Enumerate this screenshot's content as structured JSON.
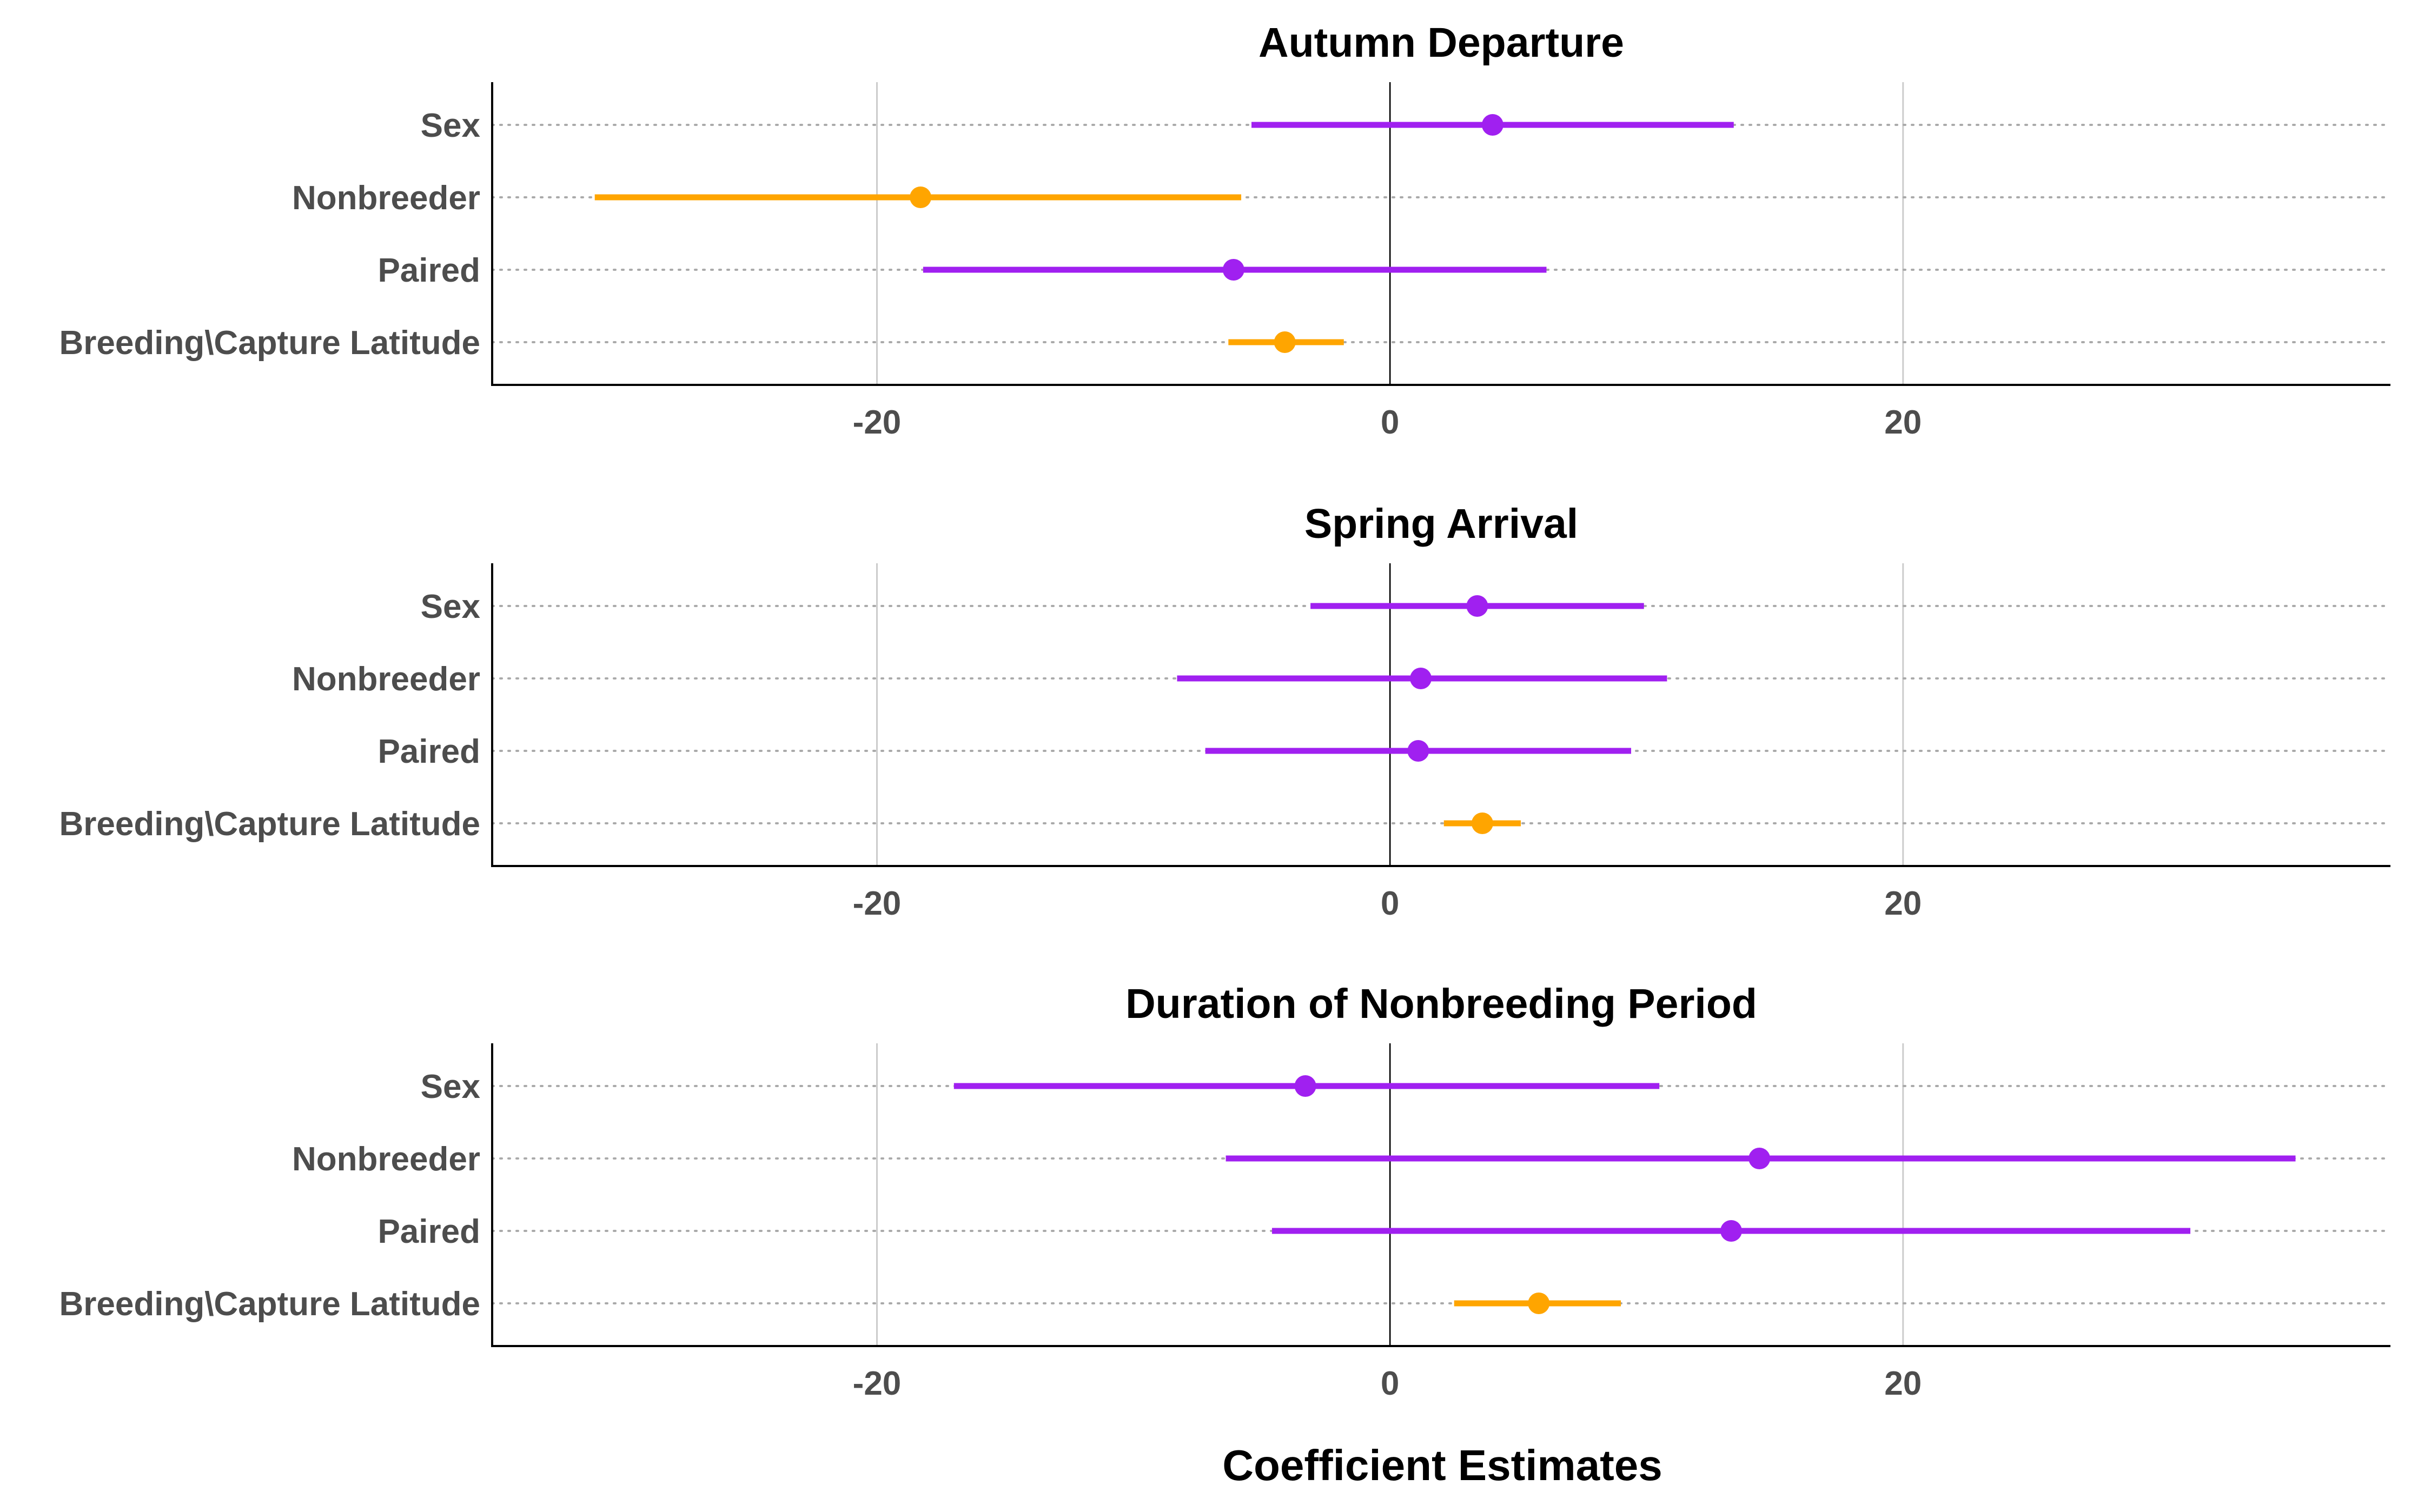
{
  "colors": {
    "significant": "#FFA500",
    "not_significant": "#A020F0",
    "grid": "#cccccc",
    "guide": "#aaaaaa",
    "axis": "#000000"
  },
  "chart_data": {
    "type": "dot-and-whisker",
    "xlabel": "Coefficient Estimates",
    "xlim": [
      -35,
      39
    ],
    "xticks": [
      -20,
      0,
      20
    ],
    "xtick_labels": [
      "-20",
      "0",
      "20"
    ],
    "vertical_grid": true,
    "reference_line": 0,
    "panels": [
      {
        "title": "Autumn Departure",
        "terms": [
          "Sex",
          "Nonbreeder",
          "Paired",
          "Breeding\\Capture Latitude"
        ],
        "estimates": [
          4.0,
          -18.3,
          -6.1,
          -4.1
        ],
        "lower": [
          -5.4,
          -31.0,
          -18.2,
          -6.3
        ],
        "upper": [
          13.4,
          -5.8,
          6.1,
          -1.8
        ],
        "significant": [
          false,
          true,
          false,
          true
        ]
      },
      {
        "title": "Spring Arrival",
        "terms": [
          "Sex",
          "Nonbreeder",
          "Paired",
          "Breeding\\Capture Latitude"
        ],
        "estimates": [
          3.4,
          1.2,
          1.1,
          3.6
        ],
        "lower": [
          -3.1,
          -8.3,
          -7.2,
          2.1
        ],
        "upper": [
          9.9,
          10.8,
          9.4,
          5.1
        ],
        "significant": [
          false,
          false,
          false,
          true
        ]
      },
      {
        "title": "Duration of Nonbreeding Period",
        "terms": [
          "Sex",
          "Nonbreeder",
          "Paired",
          "Breeding\\Capture Latitude"
        ],
        "estimates": [
          -3.3,
          14.4,
          13.3,
          5.8
        ],
        "lower": [
          -17.0,
          -6.4,
          -4.6,
          2.5
        ],
        "upper": [
          10.5,
          35.3,
          31.2,
          9.0
        ],
        "significant": [
          false,
          false,
          false,
          true
        ]
      }
    ]
  }
}
